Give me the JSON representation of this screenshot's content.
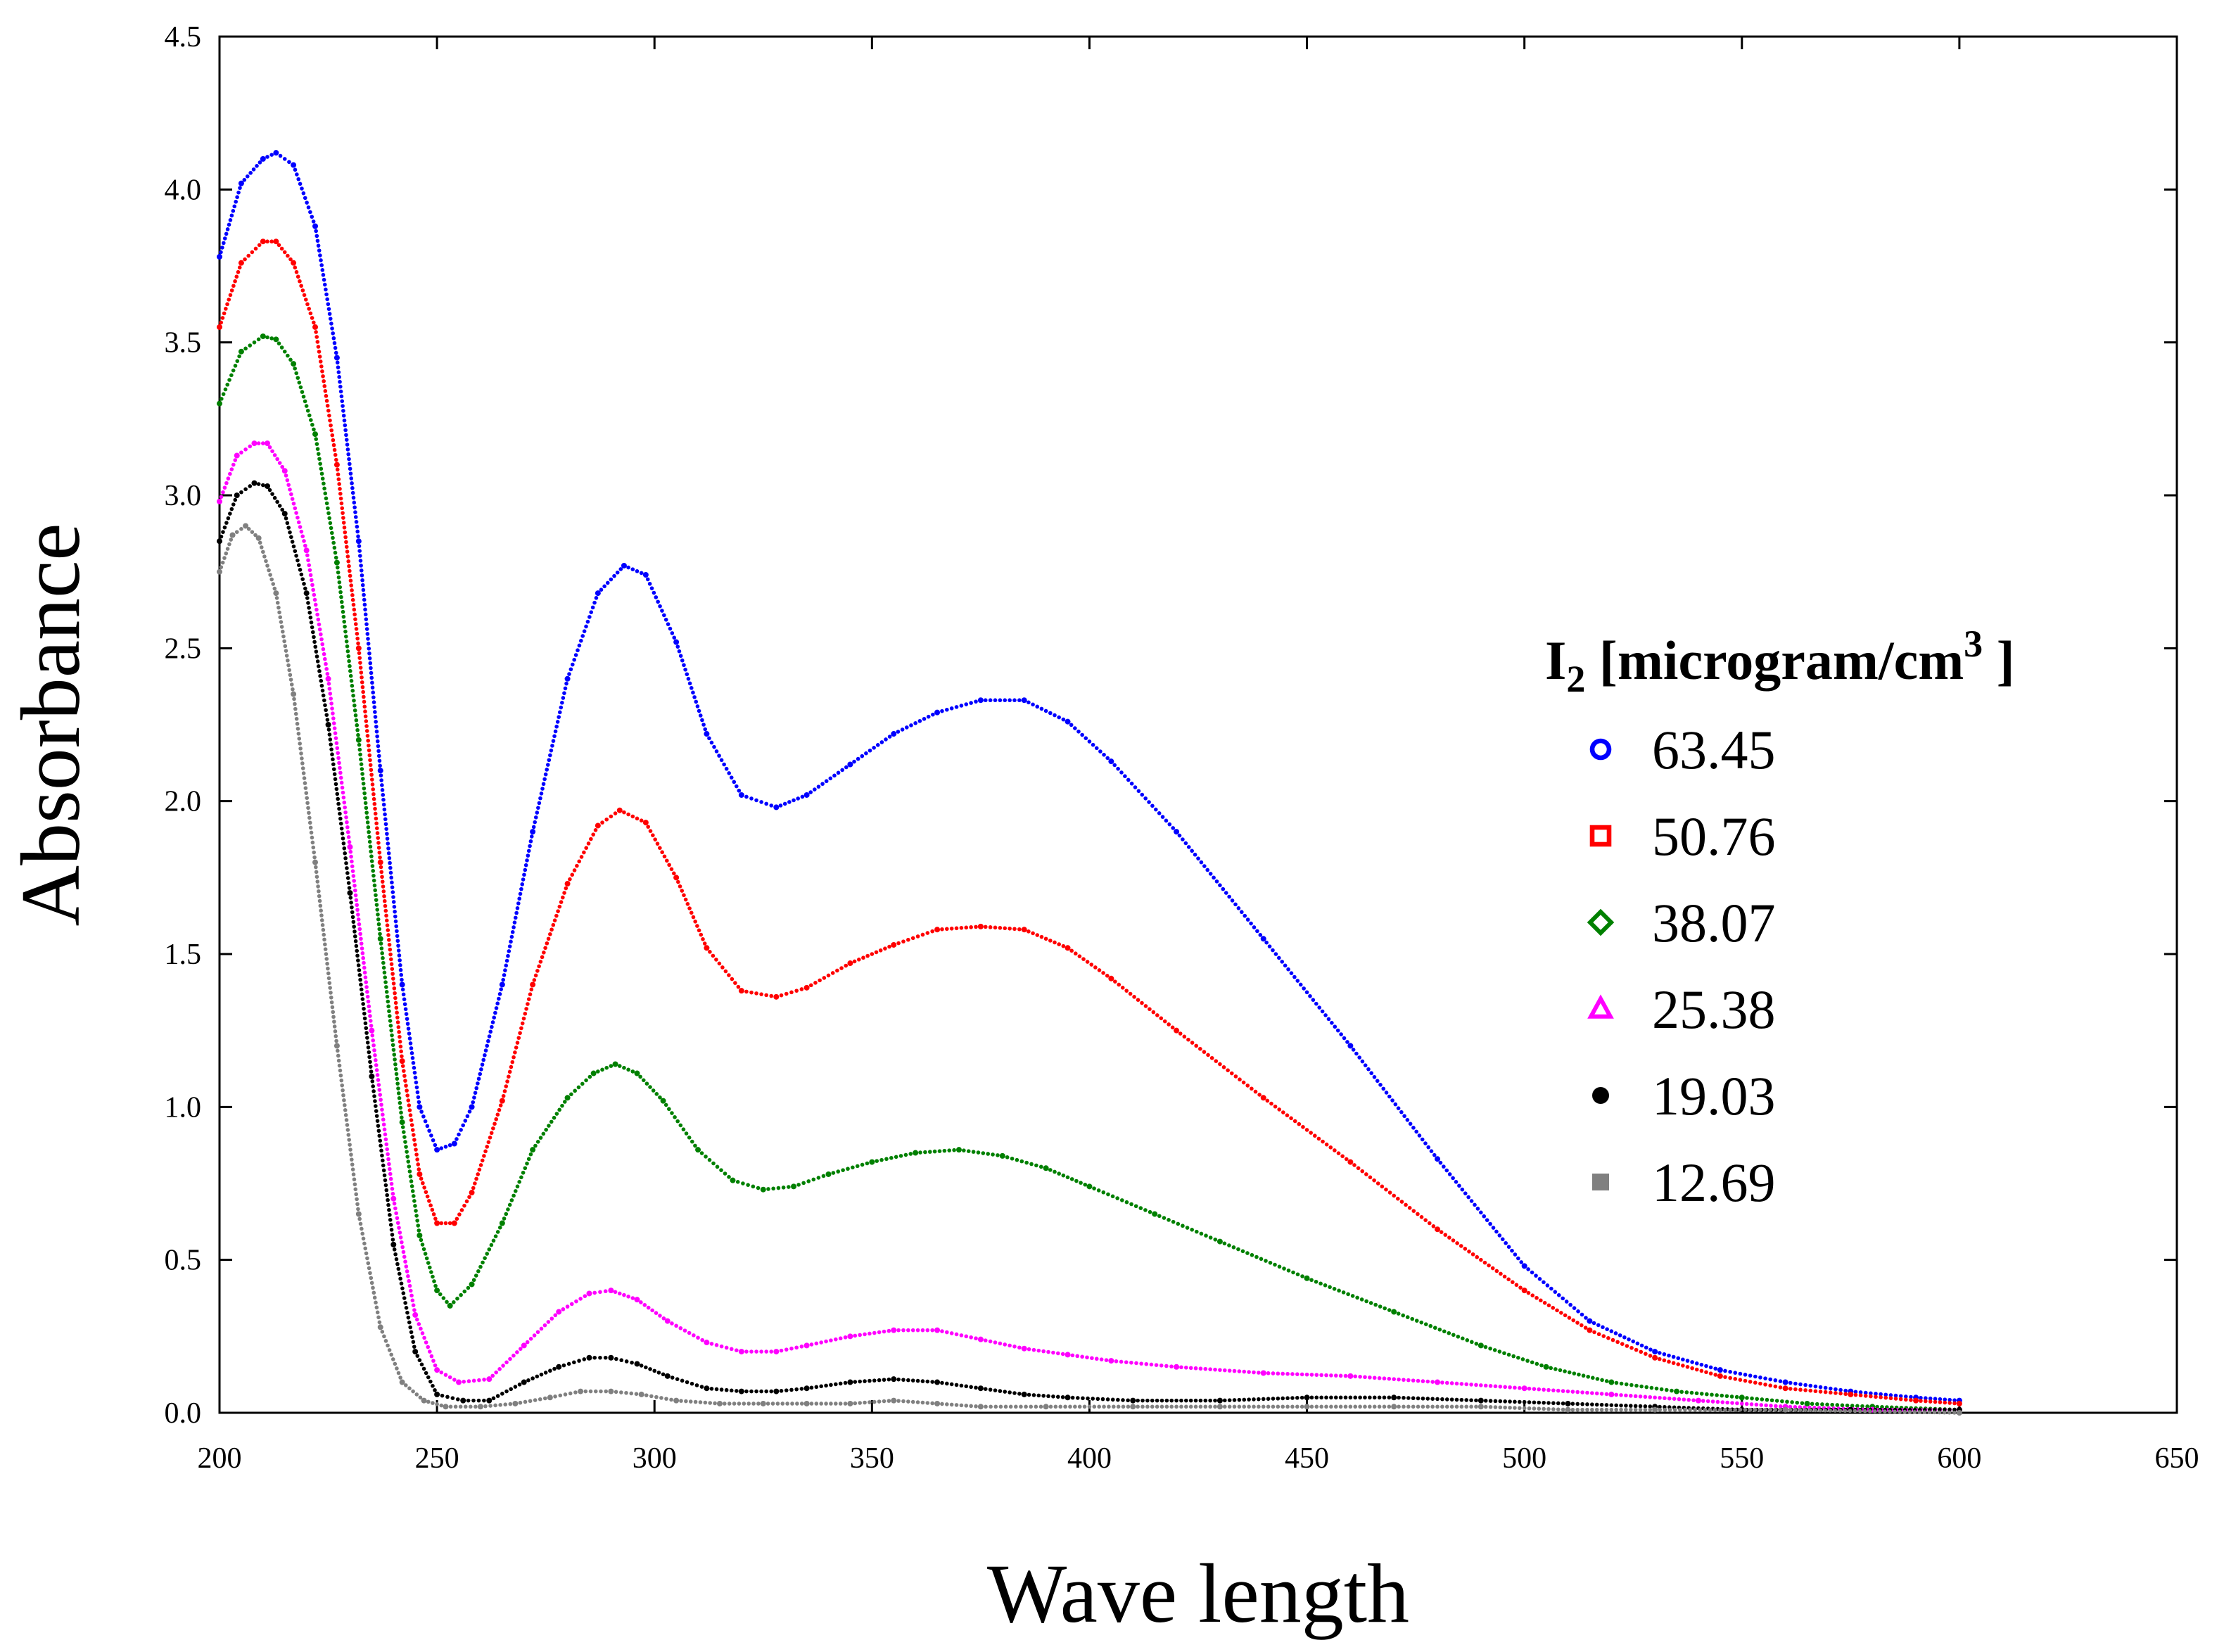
{
  "chart_data": {
    "type": "scatter",
    "xlabel": "Wave length",
    "ylabel": "Absorbance",
    "xlim": [
      200,
      650
    ],
    "ylim": [
      0,
      4.5
    ],
    "x_ticks": [
      "200",
      "250",
      "300",
      "350",
      "400",
      "450",
      "500",
      "550",
      "600",
      "650"
    ],
    "y_ticks": [
      "0.0",
      "0.5",
      "1.0",
      "1.5",
      "2.0",
      "2.5",
      "3.0",
      "3.5",
      "4.0",
      "4.5"
    ],
    "grid": false,
    "legend_position": "right",
    "legend_title": {
      "main": "I",
      "subscript": "2",
      "unit": " [microgram/cm",
      "superscript": "3",
      "close": " ]"
    },
    "series": [
      {
        "name": "63.45",
        "color": "#0000ff",
        "marker": "circle",
        "points": [
          [
            200,
            3.78
          ],
          [
            205,
            4.02
          ],
          [
            210,
            4.1
          ],
          [
            213,
            4.12
          ],
          [
            217,
            4.08
          ],
          [
            222,
            3.88
          ],
          [
            227,
            3.45
          ],
          [
            232,
            2.85
          ],
          [
            237,
            2.1
          ],
          [
            242,
            1.4
          ],
          [
            246,
            1.0
          ],
          [
            250,
            0.86
          ],
          [
            254,
            0.88
          ],
          [
            258,
            1.0
          ],
          [
            265,
            1.4
          ],
          [
            272,
            1.9
          ],
          [
            280,
            2.4
          ],
          [
            287,
            2.68
          ],
          [
            293,
            2.77
          ],
          [
            298,
            2.74
          ],
          [
            305,
            2.52
          ],
          [
            312,
            2.22
          ],
          [
            320,
            2.02
          ],
          [
            328,
            1.98
          ],
          [
            335,
            2.02
          ],
          [
            345,
            2.12
          ],
          [
            355,
            2.22
          ],
          [
            365,
            2.29
          ],
          [
            375,
            2.33
          ],
          [
            385,
            2.33
          ],
          [
            395,
            2.26
          ],
          [
            405,
            2.13
          ],
          [
            420,
            1.9
          ],
          [
            440,
            1.55
          ],
          [
            460,
            1.2
          ],
          [
            480,
            0.83
          ],
          [
            500,
            0.48
          ],
          [
            515,
            0.3
          ],
          [
            530,
            0.2
          ],
          [
            545,
            0.14
          ],
          [
            560,
            0.1
          ],
          [
            575,
            0.07
          ],
          [
            590,
            0.05
          ],
          [
            600,
            0.04
          ]
        ]
      },
      {
        "name": "50.76",
        "color": "#ff0000",
        "marker": "square",
        "points": [
          [
            200,
            3.55
          ],
          [
            205,
            3.76
          ],
          [
            210,
            3.83
          ],
          [
            213,
            3.83
          ],
          [
            217,
            3.76
          ],
          [
            222,
            3.55
          ],
          [
            227,
            3.1
          ],
          [
            232,
            2.5
          ],
          [
            237,
            1.8
          ],
          [
            242,
            1.15
          ],
          [
            246,
            0.78
          ],
          [
            250,
            0.62
          ],
          [
            254,
            0.62
          ],
          [
            258,
            0.72
          ],
          [
            265,
            1.02
          ],
          [
            272,
            1.4
          ],
          [
            280,
            1.73
          ],
          [
            287,
            1.92
          ],
          [
            292,
            1.97
          ],
          [
            298,
            1.93
          ],
          [
            305,
            1.75
          ],
          [
            312,
            1.52
          ],
          [
            320,
            1.38
          ],
          [
            328,
            1.36
          ],
          [
            335,
            1.39
          ],
          [
            345,
            1.47
          ],
          [
            355,
            1.53
          ],
          [
            365,
            1.58
          ],
          [
            375,
            1.59
          ],
          [
            385,
            1.58
          ],
          [
            395,
            1.52
          ],
          [
            405,
            1.42
          ],
          [
            420,
            1.25
          ],
          [
            440,
            1.03
          ],
          [
            460,
            0.82
          ],
          [
            480,
            0.6
          ],
          [
            500,
            0.4
          ],
          [
            515,
            0.27
          ],
          [
            530,
            0.18
          ],
          [
            545,
            0.12
          ],
          [
            560,
            0.08
          ],
          [
            575,
            0.06
          ],
          [
            590,
            0.04
          ],
          [
            600,
            0.03
          ]
        ]
      },
      {
        "name": "38.07",
        "color": "#008000",
        "marker": "diamond",
        "points": [
          [
            200,
            3.3
          ],
          [
            205,
            3.47
          ],
          [
            210,
            3.52
          ],
          [
            213,
            3.51
          ],
          [
            217,
            3.43
          ],
          [
            222,
            3.2
          ],
          [
            227,
            2.78
          ],
          [
            232,
            2.2
          ],
          [
            237,
            1.55
          ],
          [
            242,
            0.95
          ],
          [
            246,
            0.58
          ],
          [
            250,
            0.4
          ],
          [
            253,
            0.35
          ],
          [
            258,
            0.42
          ],
          [
            265,
            0.62
          ],
          [
            272,
            0.86
          ],
          [
            280,
            1.03
          ],
          [
            286,
            1.11
          ],
          [
            291,
            1.14
          ],
          [
            296,
            1.11
          ],
          [
            302,
            1.02
          ],
          [
            310,
            0.86
          ],
          [
            318,
            0.76
          ],
          [
            325,
            0.73
          ],
          [
            332,
            0.74
          ],
          [
            340,
            0.78
          ],
          [
            350,
            0.82
          ],
          [
            360,
            0.85
          ],
          [
            370,
            0.86
          ],
          [
            380,
            0.84
          ],
          [
            390,
            0.8
          ],
          [
            400,
            0.74
          ],
          [
            415,
            0.65
          ],
          [
            430,
            0.56
          ],
          [
            450,
            0.44
          ],
          [
            470,
            0.33
          ],
          [
            490,
            0.22
          ],
          [
            505,
            0.15
          ],
          [
            520,
            0.1
          ],
          [
            535,
            0.07
          ],
          [
            550,
            0.05
          ],
          [
            565,
            0.03
          ],
          [
            580,
            0.02
          ],
          [
            600,
            0.01
          ]
        ]
      },
      {
        "name": "25.38",
        "color": "#ff00ff",
        "marker": "triangle",
        "points": [
          [
            200,
            2.98
          ],
          [
            204,
            3.13
          ],
          [
            208,
            3.17
          ],
          [
            211,
            3.17
          ],
          [
            215,
            3.08
          ],
          [
            220,
            2.82
          ],
          [
            225,
            2.4
          ],
          [
            230,
            1.85
          ],
          [
            235,
            1.25
          ],
          [
            240,
            0.7
          ],
          [
            245,
            0.32
          ],
          [
            250,
            0.14
          ],
          [
            255,
            0.1
          ],
          [
            262,
            0.11
          ],
          [
            270,
            0.22
          ],
          [
            278,
            0.33
          ],
          [
            285,
            0.39
          ],
          [
            290,
            0.4
          ],
          [
            296,
            0.37
          ],
          [
            303,
            0.3
          ],
          [
            312,
            0.23
          ],
          [
            320,
            0.2
          ],
          [
            328,
            0.2
          ],
          [
            335,
            0.22
          ],
          [
            345,
            0.25
          ],
          [
            355,
            0.27
          ],
          [
            365,
            0.27
          ],
          [
            375,
            0.24
          ],
          [
            385,
            0.21
          ],
          [
            395,
            0.19
          ],
          [
            405,
            0.17
          ],
          [
            420,
            0.15
          ],
          [
            440,
            0.13
          ],
          [
            460,
            0.12
          ],
          [
            480,
            0.1
          ],
          [
            500,
            0.08
          ],
          [
            520,
            0.06
          ],
          [
            540,
            0.04
          ],
          [
            560,
            0.02
          ],
          [
            580,
            0.01
          ],
          [
            600,
            0.01
          ]
        ]
      },
      {
        "name": "19.03",
        "color": "#000000",
        "marker": "filled-circle",
        "points": [
          [
            200,
            2.85
          ],
          [
            204,
            3.0
          ],
          [
            208,
            3.04
          ],
          [
            211,
            3.03
          ],
          [
            215,
            2.94
          ],
          [
            220,
            2.68
          ],
          [
            225,
            2.25
          ],
          [
            230,
            1.7
          ],
          [
            235,
            1.1
          ],
          [
            240,
            0.55
          ],
          [
            245,
            0.2
          ],
          [
            250,
            0.06
          ],
          [
            256,
            0.04
          ],
          [
            262,
            0.04
          ],
          [
            270,
            0.1
          ],
          [
            278,
            0.15
          ],
          [
            285,
            0.18
          ],
          [
            290,
            0.18
          ],
          [
            296,
            0.16
          ],
          [
            303,
            0.12
          ],
          [
            312,
            0.08
          ],
          [
            320,
            0.07
          ],
          [
            328,
            0.07
          ],
          [
            335,
            0.08
          ],
          [
            345,
            0.1
          ],
          [
            355,
            0.11
          ],
          [
            365,
            0.1
          ],
          [
            375,
            0.08
          ],
          [
            385,
            0.06
          ],
          [
            395,
            0.05
          ],
          [
            410,
            0.04
          ],
          [
            430,
            0.04
          ],
          [
            450,
            0.05
          ],
          [
            470,
            0.05
          ],
          [
            490,
            0.04
          ],
          [
            510,
            0.03
          ],
          [
            530,
            0.02
          ],
          [
            550,
            0.01
          ],
          [
            575,
            0.01
          ],
          [
            600,
            0.01
          ]
        ]
      },
      {
        "name": "12.69",
        "color": "#808080",
        "marker": "filled-square",
        "points": [
          [
            200,
            2.75
          ],
          [
            203,
            2.87
          ],
          [
            206,
            2.9
          ],
          [
            209,
            2.86
          ],
          [
            213,
            2.68
          ],
          [
            217,
            2.35
          ],
          [
            222,
            1.8
          ],
          [
            227,
            1.2
          ],
          [
            232,
            0.65
          ],
          [
            237,
            0.28
          ],
          [
            242,
            0.1
          ],
          [
            247,
            0.04
          ],
          [
            252,
            0.02
          ],
          [
            260,
            0.02
          ],
          [
            268,
            0.03
          ],
          [
            276,
            0.05
          ],
          [
            283,
            0.07
          ],
          [
            290,
            0.07
          ],
          [
            297,
            0.06
          ],
          [
            305,
            0.04
          ],
          [
            315,
            0.03
          ],
          [
            325,
            0.03
          ],
          [
            335,
            0.03
          ],
          [
            345,
            0.03
          ],
          [
            355,
            0.04
          ],
          [
            365,
            0.03
          ],
          [
            375,
            0.02
          ],
          [
            390,
            0.02
          ],
          [
            410,
            0.02
          ],
          [
            430,
            0.02
          ],
          [
            450,
            0.02
          ],
          [
            470,
            0.02
          ],
          [
            490,
            0.02
          ],
          [
            510,
            0.01
          ],
          [
            530,
            0.01
          ],
          [
            560,
            0.01
          ],
          [
            600,
            0.0
          ]
        ]
      }
    ]
  }
}
